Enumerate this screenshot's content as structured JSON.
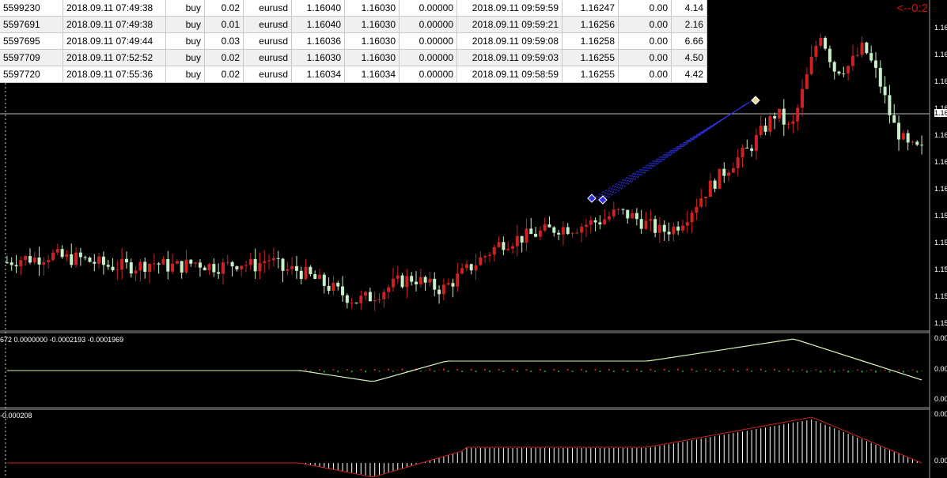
{
  "trades": [
    {
      "ticket": "5599230",
      "open_time": "2018.09.11 07:49:38",
      "type": "buy",
      "size": "0.02",
      "symbol": "eurusd",
      "open_price": "1.16040",
      "sl": "1.16030",
      "tp": "0.00000",
      "close_time": "2018.09.11 09:59:59",
      "close_price": "1.16247",
      "swap": "0.00",
      "profit": "4.14"
    },
    {
      "ticket": "5597691",
      "open_time": "2018.09.11 07:49:38",
      "type": "buy",
      "size": "0.01",
      "symbol": "eurusd",
      "open_price": "1.16040",
      "sl": "1.16030",
      "tp": "0.00000",
      "close_time": "2018.09.11 09:59:21",
      "close_price": "1.16256",
      "swap": "0.00",
      "profit": "2.16"
    },
    {
      "ticket": "5597695",
      "open_time": "2018.09.11 07:49:44",
      "type": "buy",
      "size": "0.03",
      "symbol": "eurusd",
      "open_price": "1.16036",
      "sl": "1.16030",
      "tp": "0.00000",
      "close_time": "2018.09.11 09:59:08",
      "close_price": "1.16258",
      "swap": "0.00",
      "profit": "6.66"
    },
    {
      "ticket": "5597709",
      "open_time": "2018.09.11 07:52:52",
      "type": "buy",
      "size": "0.02",
      "symbol": "eurusd",
      "open_price": "1.16030",
      "sl": "1.16030",
      "tp": "0.00000",
      "close_time": "2018.09.11 09:59:03",
      "close_price": "1.16255",
      "swap": "0.00",
      "profit": "4.50"
    },
    {
      "ticket": "5597720",
      "open_time": "2018.09.11 07:55:36",
      "type": "buy",
      "size": "0.02",
      "symbol": "eurusd",
      "open_price": "1.16034",
      "sl": "1.16034",
      "tp": "0.00000",
      "close_time": "2018.09.11 09:58:59",
      "close_price": "1.16255",
      "swap": "0.00",
      "profit": "4.42"
    }
  ],
  "countdown": "<--0:2",
  "price_axis_labels": [
    "1.16",
    "1.16",
    "1.16",
    "1.16",
    "1.16",
    "1.16",
    "1.16",
    "1.15",
    "1.15",
    "1.15",
    "1.15",
    "1.15"
  ],
  "current_price_label": "1.16",
  "macd_panel": {
    "label": "672 0.0000000 -0.0002193 -0.0001969",
    "axis_labels": [
      "0.00",
      "0.00",
      "0.00"
    ]
  },
  "osma_panel": {
    "label": "-0.000208",
    "axis_labels": [
      "0.00",
      "0.00"
    ]
  },
  "colors": {
    "bull_candle": "#cc2222",
    "bear_candle": "#c8f0c8",
    "macd_main": "#ffffff",
    "macd_signal": "#d0f0b0",
    "hist_up": "#cc2222",
    "hist_down": "#2e8b2e",
    "osma_bar": "#ffffff",
    "osma_line": "#cc2222",
    "trade_line": "#3030e0",
    "grid_line": "#c0c0c0"
  },
  "chart_data": {
    "type": "candlestick",
    "symbol": "eurusd",
    "close_path": [
      1.1536,
      1.1537,
      1.1537,
      1.1538,
      1.1537,
      1.1537,
      1.1536,
      1.1535,
      1.1535,
      1.1535,
      1.1536,
      1.1535,
      1.1535,
      1.1536,
      1.1535,
      1.1535,
      1.1536,
      1.1535,
      1.1537,
      1.1534,
      1.1534,
      1.1532,
      1.153,
      1.1528,
      1.1526,
      1.1527,
      1.1529,
      1.1531,
      1.1532,
      1.153,
      1.1529,
      1.1532,
      1.1535,
      1.1538,
      1.1541,
      1.1542,
      1.1543,
      1.1544,
      1.1545,
      1.1545,
      1.1546,
      1.1547,
      1.1549,
      1.1548,
      1.1546,
      1.1544,
      1.1545,
      1.1549,
      1.1554,
      1.1558,
      1.1562,
      1.1565,
      1.157,
      1.1575,
      1.157,
      1.1583,
      1.1596,
      1.1586,
      1.1587,
      1.1592,
      1.1584,
      1.1572,
      1.1566,
      1.1565
    ]
  }
}
